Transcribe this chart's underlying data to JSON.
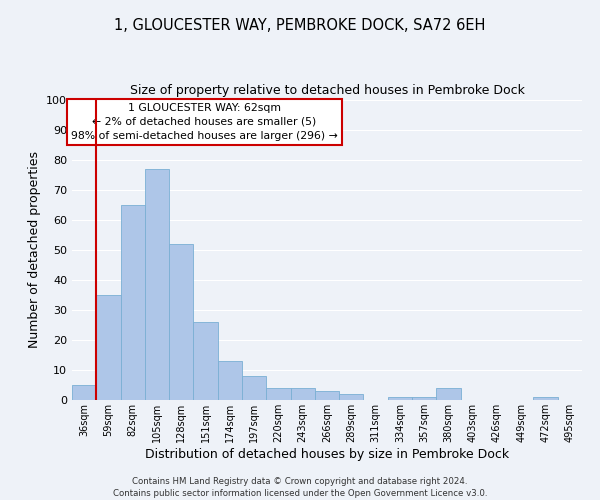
{
  "title": "1, GLOUCESTER WAY, PEMBROKE DOCK, SA72 6EH",
  "subtitle": "Size of property relative to detached houses in Pembroke Dock",
  "xlabel": "Distribution of detached houses by size in Pembroke Dock",
  "ylabel": "Number of detached properties",
  "bar_labels": [
    "36sqm",
    "59sqm",
    "82sqm",
    "105sqm",
    "128sqm",
    "151sqm",
    "174sqm",
    "197sqm",
    "220sqm",
    "243sqm",
    "266sqm",
    "289sqm",
    "311sqm",
    "334sqm",
    "357sqm",
    "380sqm",
    "403sqm",
    "426sqm",
    "449sqm",
    "472sqm",
    "495sqm"
  ],
  "bar_values": [
    5,
    35,
    65,
    77,
    52,
    26,
    13,
    8,
    4,
    4,
    3,
    2,
    0,
    1,
    1,
    4,
    0,
    0,
    0,
    1,
    0
  ],
  "bar_color": "#aec6e8",
  "bar_edge_color": "#7aafd4",
  "ylim": [
    0,
    100
  ],
  "yticks": [
    0,
    10,
    20,
    30,
    40,
    50,
    60,
    70,
    80,
    90,
    100
  ],
  "vline_color": "#cc0000",
  "annotation_title": "1 GLOUCESTER WAY: 62sqm",
  "annotation_line2": "← 2% of detached houses are smaller (5)",
  "annotation_line3": "98% of semi-detached houses are larger (296) →",
  "annotation_box_edgecolor": "#cc0000",
  "bg_color": "#eef2f8",
  "grid_color": "#ffffff",
  "footer_line1": "Contains HM Land Registry data © Crown copyright and database right 2024.",
  "footer_line2": "Contains public sector information licensed under the Open Government Licence v3.0."
}
